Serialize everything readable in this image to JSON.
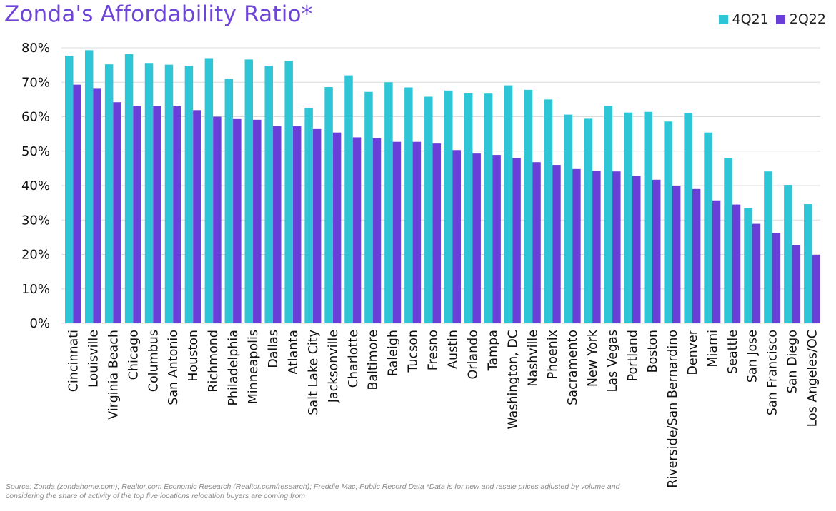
{
  "title": "Zonda's Affordability Ratio*",
  "source": "Source: Zonda (zondahome.com); Realtor.com Economic Research (Realtor.com/research); Freddie Mac; Public Record Data *Data is for new and resale prices adjusted by volume and considering the share of activity of the top five locations relocation buyers are coming from",
  "colors": {
    "series1": "#2ec6d6",
    "series2": "#6a3fd8",
    "grid": "#dcdcdc",
    "title": "#6f45d8"
  },
  "chart_data": {
    "type": "bar",
    "title": "Zonda's Affordability Ratio*",
    "xlabel": "",
    "ylabel": "",
    "ylim": [
      0,
      80
    ],
    "yticks": [
      "0%",
      "10%",
      "20%",
      "30%",
      "40%",
      "50%",
      "60%",
      "70%",
      "80%"
    ],
    "grid": true,
    "legend_position": "top-right",
    "categories": [
      "Cincinnati",
      "Louisville",
      "Virginia Beach",
      "Chicago",
      "Columbus",
      "San Antonio",
      "Houston",
      "Richmond",
      "Philadelphia",
      "Minneapolis",
      "Dallas",
      "Atlanta",
      "Salt Lake City",
      "Jacksonville",
      "Charlotte",
      "Baltimore",
      "Raleigh",
      "Tucson",
      "Fresno",
      "Austin",
      "Orlando",
      "Tampa",
      "Washington, DC",
      "Nashville",
      "Phoenix",
      "Sacramento",
      "New York",
      "Las Vegas",
      "Portland",
      "Boston",
      "Riverside/San Bernardino",
      "Denver",
      "Miami",
      "Seattle",
      "San Jose",
      "San Francisco",
      "San Diego",
      "Los Angeles/OC"
    ],
    "series": [
      {
        "name": "4Q21",
        "values": [
          77.7,
          79.3,
          75.2,
          78.2,
          75.6,
          75.1,
          74.8,
          77.0,
          71.0,
          76.6,
          74.8,
          76.2,
          62.6,
          68.6,
          72.0,
          67.2,
          70.0,
          68.5,
          65.8,
          67.6,
          66.8,
          66.7,
          69.1,
          67.8,
          65.0,
          60.6,
          59.4,
          63.2,
          61.2,
          61.4,
          58.6,
          61.1,
          55.4,
          48.0,
          33.5,
          44.1,
          40.2,
          34.6
        ]
      },
      {
        "name": "2Q22",
        "values": [
          69.3,
          68.1,
          64.2,
          63.2,
          63.1,
          63.0,
          61.9,
          60.0,
          59.3,
          59.1,
          57.3,
          57.2,
          56.4,
          55.4,
          54.0,
          53.8,
          52.7,
          52.7,
          52.2,
          50.3,
          49.3,
          48.9,
          48.0,
          46.8,
          46.0,
          44.8,
          44.3,
          44.1,
          42.8,
          41.7,
          40.0,
          39.0,
          35.7,
          34.5,
          28.9,
          26.3,
          22.8,
          19.7
        ]
      }
    ]
  }
}
